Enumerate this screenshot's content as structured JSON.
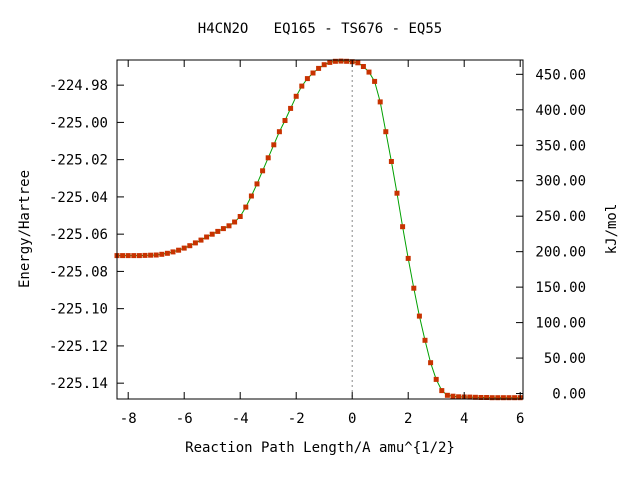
{
  "chart_data": {
    "type": "line",
    "title": "H4CN2O   EQ165 - TS676 - EQ55",
    "xlabel": "Reaction Path Length/A amu^{1/2}",
    "ylabel": "Energy/Hartree",
    "y2label": "kJ/mol",
    "xlim": [
      -8.4,
      6.1
    ],
    "ylim": [
      -225.1485,
      -224.9665
    ],
    "y2lim": [
      -7.7,
      470.2
    ],
    "x_ticks": [
      -8,
      -6,
      -4,
      -2,
      0,
      2,
      4,
      6
    ],
    "x_tick_labels": [
      "-8",
      "-6",
      "-4",
      "-2",
      "0",
      "2",
      "4",
      "6"
    ],
    "y_ticks": [
      -224.98,
      -225.0,
      -225.02,
      -225.04,
      -225.06,
      -225.08,
      -225.1,
      -225.12,
      -225.14
    ],
    "y_tick_labels": [
      "-224.98",
      "-225.00",
      "-225.02",
      "-225.04",
      "-225.06",
      "-225.08",
      "-225.10",
      "-225.12",
      "-225.14"
    ],
    "y2_ticks": [
      0,
      50,
      100,
      150,
      200,
      250,
      300,
      350,
      400,
      450
    ],
    "y2_tick_labels": [
      "0.00",
      "50.00",
      "100.00",
      "150.00",
      "200.00",
      "250.00",
      "300.00",
      "350.00",
      "400.00",
      "450.00"
    ],
    "ts_x": 0,
    "colors": {
      "line": "#00a000",
      "marker": "#c83200",
      "ts_line": "#888888"
    },
    "series": [
      {
        "x": [
          -8.4,
          -8.2,
          -8.0,
          -7.8,
          -7.6,
          -7.4,
          -7.2,
          -7.0,
          -6.8,
          -6.6,
          -6.4,
          -6.2,
          -6.0,
          -5.8,
          -5.6,
          -5.4,
          -5.2,
          -5.0,
          -4.8,
          -4.6,
          -4.4,
          -4.2,
          -4.0,
          -3.8,
          -3.6,
          -3.4,
          -3.2,
          -3.0,
          -2.8,
          -2.6,
          -2.4,
          -2.2,
          -2.0,
          -1.8,
          -1.6,
          -1.4,
          -1.2,
          -1.0,
          -0.8,
          -0.6,
          -0.4,
          -0.2,
          0.0,
          0.2,
          0.4,
          0.6,
          0.8,
          1.0,
          1.2,
          1.4,
          1.6,
          1.8,
          2.0,
          2.2,
          2.4,
          2.6,
          2.8,
          3.0,
          3.2,
          3.4,
          3.6,
          3.8,
          4.0,
          4.2,
          4.4,
          4.6,
          4.8,
          5.0,
          5.2,
          5.4,
          5.6,
          5.8,
          6.0
        ],
        "y": [
          -225.0715,
          -225.0715,
          -225.0715,
          -225.0715,
          -225.0715,
          -225.0714,
          -225.0713,
          -225.0712,
          -225.0708,
          -225.0703,
          -225.0695,
          -225.0686,
          -225.0675,
          -225.0662,
          -225.0647,
          -225.0632,
          -225.0615,
          -225.06,
          -225.0585,
          -225.057,
          -225.0555,
          -225.0535,
          -225.0505,
          -225.0455,
          -225.0395,
          -225.033,
          -225.026,
          -225.019,
          -225.012,
          -225.005,
          -224.999,
          -224.9925,
          -224.986,
          -224.9805,
          -224.9765,
          -224.9735,
          -224.971,
          -224.969,
          -224.9678,
          -224.9672,
          -224.9671,
          -224.9672,
          -224.9674,
          -224.968,
          -224.97,
          -224.973,
          -224.978,
          -224.989,
          -225.005,
          -225.021,
          -225.038,
          -225.056,
          -225.073,
          -225.089,
          -225.104,
          -225.117,
          -225.129,
          -225.138,
          -225.144,
          -225.1465,
          -225.147,
          -225.1473,
          -225.1474,
          -225.1475,
          -225.1476,
          -225.1477,
          -225.1477,
          -225.1478,
          -225.1478,
          -225.1478,
          -225.1478,
          -225.1478,
          -225.1478
        ]
      }
    ]
  }
}
